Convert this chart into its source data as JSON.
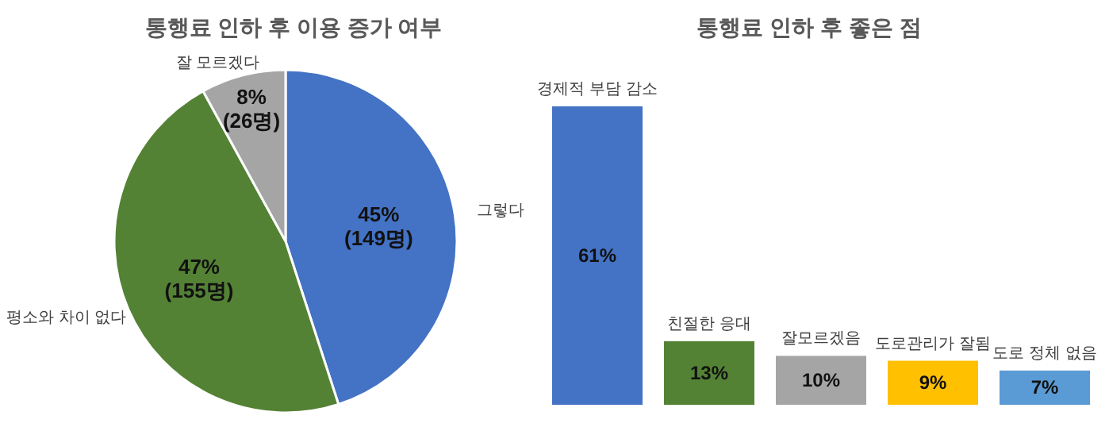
{
  "chart_data": [
    {
      "type": "pie",
      "title": "통행료 인하 후 이용 증가 여부",
      "categories": [
        "그렇다",
        "평소와 차이 없다",
        "잘 모르겠다"
      ],
      "values": [
        45,
        47,
        8
      ],
      "colors": [
        "#4472c4",
        "#548235",
        "#a5a5a5"
      ],
      "value_labels": [
        "45%\n(149명)",
        "47%\n(155명)",
        "8%\n(26명)"
      ]
    },
    {
      "type": "bar",
      "title": "통행료 인하 후 좋은 점",
      "categories": [
        "경제적 부담 감소",
        "친절한 응대",
        "잘모르겠음",
        "도로관리가 잘됨",
        "도로 정체 없음"
      ],
      "values": [
        61,
        13,
        10,
        9,
        7
      ],
      "colors": [
        "#4472c4",
        "#548235",
        "#a5a5a5",
        "#ffc000",
        "#5b9bd5"
      ],
      "value_labels": [
        "61%",
        "13%",
        "10%",
        "9%",
        "7%"
      ]
    }
  ]
}
